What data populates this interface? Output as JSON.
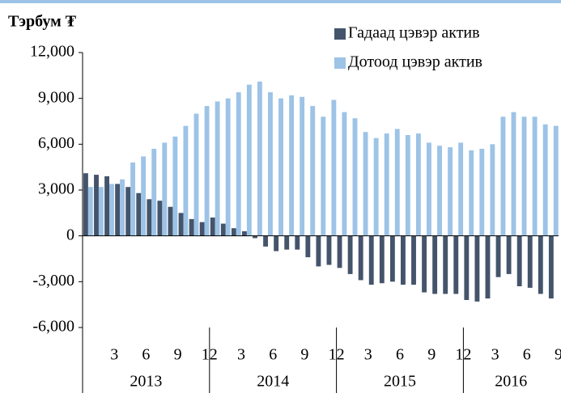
{
  "chart_data": {
    "type": "bar",
    "title": "Тэрбум ₮",
    "categories": [
      null,
      null,
      "3",
      null,
      null,
      "6",
      null,
      null,
      "9",
      null,
      null,
      "12",
      null,
      null,
      "3",
      null,
      null,
      "6",
      null,
      null,
      "9",
      null,
      null,
      "12",
      null,
      null,
      "3",
      null,
      null,
      "6",
      null,
      null,
      "9",
      null,
      null,
      "12",
      null,
      null,
      "3",
      null,
      null,
      "6",
      null,
      null,
      "9"
    ],
    "years": [
      "2013",
      "2014",
      "2015",
      "2016"
    ],
    "series": [
      {
        "name": "Гадаад цэвэр  актив",
        "color": "#44546a",
        "values": [
          4100,
          4000,
          3900,
          3400,
          3200,
          2800,
          2400,
          2300,
          1900,
          1500,
          1100,
          900,
          1200,
          800,
          500,
          300,
          -150,
          -700,
          -1000,
          -900,
          -900,
          -1400,
          -2000,
          -1900,
          -2100,
          -2500,
          -2900,
          -3200,
          -3100,
          -3000,
          -3200,
          -3200,
          -3700,
          -3800,
          -3800,
          -3800,
          -4200,
          -4300,
          -4100,
          -2700,
          -2500,
          -3300,
          -3400,
          -3800,
          -4100
        ]
      },
      {
        "name": "Дотоод цэвэр актив",
        "color": "#9dc3e6",
        "values": [
          3200,
          3200,
          3400,
          3700,
          4800,
          5200,
          5700,
          6100,
          6500,
          7200,
          8000,
          8500,
          8800,
          9000,
          9400,
          9900,
          10100,
          9400,
          9000,
          9200,
          9100,
          8500,
          7800,
          8900,
          8100,
          7700,
          6800,
          6400,
          6700,
          7000,
          6600,
          6700,
          6100,
          5900,
          5800,
          6100,
          5600,
          5700,
          6000,
          7800,
          8100,
          7800,
          7800,
          7300,
          7200
        ]
      }
    ],
    "ylim": [
      -6000,
      12000
    ],
    "yticks": [
      {
        "value": -6000,
        "label": "-6,000"
      },
      {
        "value": -3000,
        "label": "-3,000"
      },
      0,
      {
        "value": 3000,
        "label": "3,000"
      },
      {
        "value": 6000,
        "label": "6,000"
      },
      {
        "value": 9000,
        "label": "9,000"
      },
      {
        "value": 12000,
        "label": "12,000"
      }
    ],
    "legend": "top-right"
  }
}
